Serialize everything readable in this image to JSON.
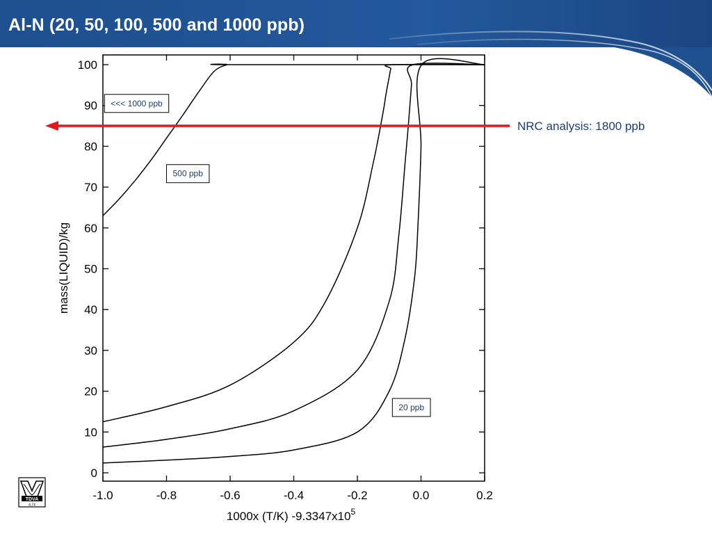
{
  "slide": {
    "title": "Al-N (20, 50, 100, 500 and 1000 ppb)",
    "header_color": "#1d5596",
    "logo_label": "TDVA",
    "logo_subtext": "4.74"
  },
  "chart_data": {
    "type": "line",
    "xlabel": "1000x (T/K) -9.3347x10",
    "xlabel_sup": "5",
    "ylabel": "mass(LIQUID)/kg",
    "xlim": [
      -1.0,
      0.2
    ],
    "ylim": [
      0,
      100
    ],
    "xticks": [
      "-1.0",
      "-0.8",
      "-0.6",
      "-0.4",
      "-0.2",
      "0.0",
      "0.2"
    ],
    "yticks": [
      "0",
      "10",
      "20",
      "30",
      "40",
      "50",
      "60",
      "70",
      "80",
      "90",
      "100"
    ],
    "line_color": "#000000",
    "series": [
      {
        "x": [
          -1.0,
          -0.95,
          -0.9,
          -0.85,
          -0.8,
          -0.75,
          -0.7,
          -0.65,
          -0.61,
          -0.6,
          0.2
        ],
        "y": [
          63,
          67,
          71.5,
          76.5,
          82,
          87.5,
          93.2,
          98.4,
          100,
          100,
          100
        ]
      },
      {
        "x": [
          -1.0,
          -0.8,
          -0.6,
          -0.4,
          -0.3,
          -0.2,
          -0.15,
          -0.12,
          -0.11,
          -0.1,
          -0.095,
          -0.09,
          0.2
        ],
        "y": [
          12.5,
          16.2,
          21.5,
          32,
          42,
          60,
          76,
          88,
          92.8,
          97,
          99,
          100,
          100
        ]
      },
      {
        "x": [
          -1.0,
          -0.8,
          -0.6,
          -0.4,
          -0.2,
          -0.1,
          -0.07,
          -0.05,
          -0.04,
          -0.03,
          -0.025,
          0.2
        ],
        "y": [
          6.3,
          8.2,
          10.8,
          15.2,
          25.2,
          42,
          58,
          76,
          85,
          95,
          100,
          100
        ]
      },
      {
        "x": [
          -1.0,
          -0.8,
          -0.6,
          -0.4,
          -0.2,
          -0.1,
          -0.05,
          -0.02,
          -0.01,
          0.0,
          0.002,
          0.2
        ],
        "y": [
          2.4,
          3.1,
          4.0,
          5.6,
          10.0,
          20,
          33,
          48,
          60,
          80,
          100,
          100
        ]
      }
    ],
    "annotations": [
      {
        "text": "<<< 1000 ppb",
        "x": -0.995,
        "y": 90.5,
        "boxed": true
      },
      {
        "text": "500 ppb",
        "x": -0.8,
        "y": 73.3,
        "boxed": true
      },
      {
        "text": "20 ppb",
        "x": -0.09,
        "y": 16.0,
        "boxed": true
      },
      {
        "text": "NRC analysis: 1800 ppb",
        "y": 85,
        "arrow": "left",
        "color": "#e21919"
      }
    ]
  }
}
